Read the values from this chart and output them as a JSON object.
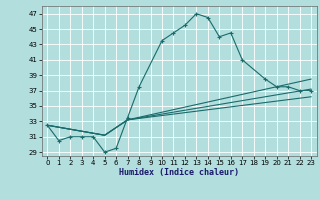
{
  "xlabel": "Humidex (Indice chaleur)",
  "xlim": [
    -0.5,
    23.5
  ],
  "ylim": [
    28.5,
    48.0
  ],
  "yticks": [
    29,
    31,
    33,
    35,
    37,
    39,
    41,
    43,
    45,
    47
  ],
  "xticks": [
    0,
    1,
    2,
    3,
    4,
    5,
    6,
    7,
    8,
    9,
    10,
    11,
    12,
    13,
    14,
    15,
    16,
    17,
    18,
    19,
    20,
    21,
    22,
    23
  ],
  "bg_color": "#b2dede",
  "grid_color": "#ffffff",
  "line_color": "#1a6b6b",
  "main_x": [
    0,
    1,
    2,
    3,
    4,
    5,
    6,
    7,
    8,
    10,
    11,
    12,
    13,
    14,
    15,
    16,
    17,
    19,
    20,
    21,
    22,
    23
  ],
  "main_y": [
    32.5,
    30.5,
    31.0,
    31.0,
    31.0,
    29.0,
    29.5,
    33.5,
    37.5,
    43.5,
    44.5,
    45.5,
    47.0,
    46.5,
    44.0,
    44.5,
    41.0,
    38.5,
    37.5,
    37.5,
    37.0,
    37.0
  ],
  "flat_lines": [
    {
      "x": [
        0,
        5,
        7,
        23
      ],
      "y": [
        32.5,
        31.2,
        33.2,
        38.5
      ]
    },
    {
      "x": [
        0,
        5,
        7,
        23
      ],
      "y": [
        32.5,
        31.2,
        33.2,
        37.2
      ]
    },
    {
      "x": [
        0,
        5,
        7,
        23
      ],
      "y": [
        32.5,
        31.2,
        33.2,
        36.2
      ]
    }
  ]
}
